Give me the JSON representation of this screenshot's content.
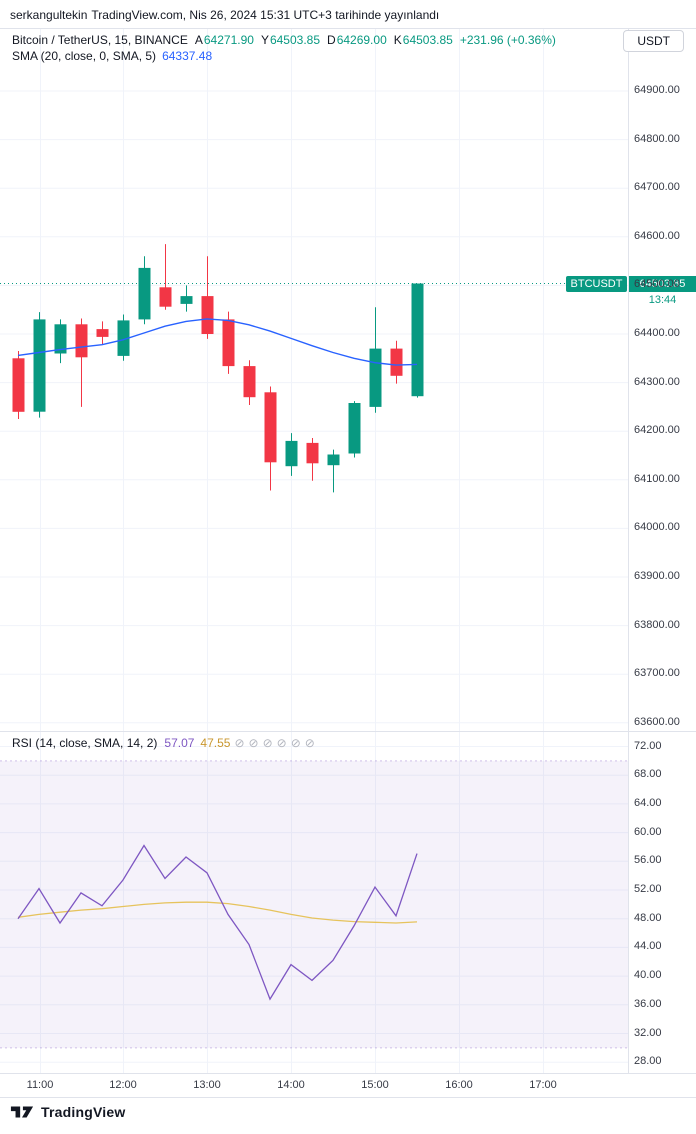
{
  "attribution": {
    "user": "serkangultekin",
    "rest": "TradingView.com, Nis 26, 2024 15:31 UTC+3 tarihinde yayınlandı"
  },
  "header": {
    "symbol": "Bitcoin / TetherUS, 15, BINANCE",
    "ohlc": [
      {
        "k": "A",
        "v": "64271.90"
      },
      {
        "k": "Y",
        "v": "64503.85"
      },
      {
        "k": "D",
        "v": "64269.00"
      },
      {
        "k": "K",
        "v": "64503.85"
      }
    ],
    "change": "+231.96 (+0.36%)",
    "sma_label": "SMA (20, close, 0, SMA, 5)",
    "sma_value": "64337.48",
    "currency_button": "USDT"
  },
  "price_badge": {
    "symbol": "BTCUSDT",
    "price": "64503.85",
    "countdown": "13:44"
  },
  "rsi_header": {
    "label": "RSI (14, close, SMA, 14, 2)",
    "value": "57.07",
    "ma_value": "47.55",
    "hidden_markers": [
      "⊘",
      "⊘",
      "⊘",
      "⊘",
      "⊘",
      "⊘"
    ]
  },
  "price_scale": {
    "labels": [
      "64900.00",
      "64800.00",
      "64700.00",
      "64600.00",
      "64500.00",
      "64400.00",
      "64300.00",
      "64200.00",
      "64100.00",
      "64000.00",
      "63900.00",
      "63800.00",
      "63700.00",
      "63600.00"
    ]
  },
  "rsi_scale": {
    "labels": [
      "72.00",
      "68.00",
      "64.00",
      "60.00",
      "56.00",
      "52.00",
      "48.00",
      "44.00",
      "40.00",
      "36.00",
      "32.00",
      "28.00"
    ]
  },
  "time_axis": [
    "11:00",
    "12:00",
    "13:00",
    "14:00",
    "15:00",
    "16:00",
    "17:00"
  ],
  "footer": {
    "brand": "TradingView"
  },
  "colors": {
    "up": "#089981",
    "down": "#f23645",
    "sma": "#2962ff",
    "rsi": "#7e57c2",
    "rsi_ma": "#e6c35c",
    "grid": "#f0f3fa",
    "separator": "#e0e3eb",
    "axis_text": "#363a45",
    "badge_bg": "#089981",
    "band_fill": "rgba(126,87,194,0.08)",
    "band_line": "rgba(126,87,194,0.35)",
    "text_dark": "#131722"
  },
  "chart_data": [
    {
      "type": "candlestick",
      "title": "Bitcoin / TetherUS, 15, BINANCE",
      "interval_minutes": 15,
      "x": [
        "10:45",
        "11:00",
        "11:15",
        "11:30",
        "11:45",
        "12:00",
        "12:15",
        "12:30",
        "12:45",
        "13:00",
        "13:15",
        "13:30",
        "13:45",
        "14:00",
        "14:15",
        "14:30",
        "14:45",
        "15:00",
        "15:15",
        "15:30"
      ],
      "candles": [
        [
          64350,
          64365,
          64225,
          64240
        ],
        [
          64240,
          64445,
          64228,
          64430
        ],
        [
          64360,
          64430,
          64340,
          64420
        ],
        [
          64420,
          64432,
          64250,
          64352
        ],
        [
          64410,
          64426,
          64378,
          64394
        ],
        [
          64355,
          64440,
          64345,
          64428
        ],
        [
          64430,
          64560,
          64420,
          64536
        ],
        [
          64496,
          64585,
          64450,
          64456
        ],
        [
          64462,
          64500,
          64446,
          64478
        ],
        [
          64478,
          64560,
          64390,
          64400
        ],
        [
          64430,
          64446,
          64318,
          64334
        ],
        [
          64334,
          64346,
          64254,
          64270
        ],
        [
          64280,
          64292,
          64078,
          64136
        ],
        [
          64128,
          64196,
          64108,
          64180
        ],
        [
          64176,
          64186,
          64098,
          64134
        ],
        [
          64130,
          64162,
          64074,
          64152
        ],
        [
          64154,
          64262,
          64146,
          64258
        ],
        [
          64250,
          64455,
          64238,
          64370
        ],
        [
          64370,
          64386,
          64298,
          64314
        ],
        [
          64271.9,
          64503.85,
          64269,
          64503.85
        ]
      ],
      "sma20": [
        64356,
        64362,
        64368,
        64373,
        64378,
        64388,
        64402,
        64416,
        64426,
        64431,
        64428,
        64419,
        64406,
        64391,
        64376,
        64362,
        64350,
        64341,
        64336,
        64337.48
      ],
      "last_price": 64503.85,
      "ylim": [
        63580,
        64950
      ],
      "y_step": 100
    },
    {
      "type": "line",
      "title": "RSI (14, close, SMA, 14, 2)",
      "x": [
        "10:45",
        "11:00",
        "11:15",
        "11:30",
        "11:45",
        "12:00",
        "12:15",
        "12:30",
        "12:45",
        "13:00",
        "13:15",
        "13:30",
        "13:45",
        "14:00",
        "14:15",
        "14:30",
        "14:45",
        "15:00",
        "15:15",
        "15:30"
      ],
      "rsi": [
        48.0,
        52.2,
        47.4,
        51.6,
        49.8,
        53.4,
        58.2,
        53.6,
        56.6,
        54.4,
        48.6,
        44.4,
        36.8,
        41.6,
        39.4,
        42.2,
        47.0,
        52.4,
        48.4,
        57.07
      ],
      "rsi_ma": [
        48.2,
        48.6,
        48.9,
        49.2,
        49.4,
        49.7,
        50.0,
        50.2,
        50.3,
        50.3,
        50.1,
        49.7,
        49.2,
        48.6,
        48.1,
        47.8,
        47.6,
        47.5,
        47.4,
        47.55
      ],
      "band": [
        30,
        70
      ],
      "ylim": [
        26,
        74
      ],
      "y_step": 4
    }
  ]
}
